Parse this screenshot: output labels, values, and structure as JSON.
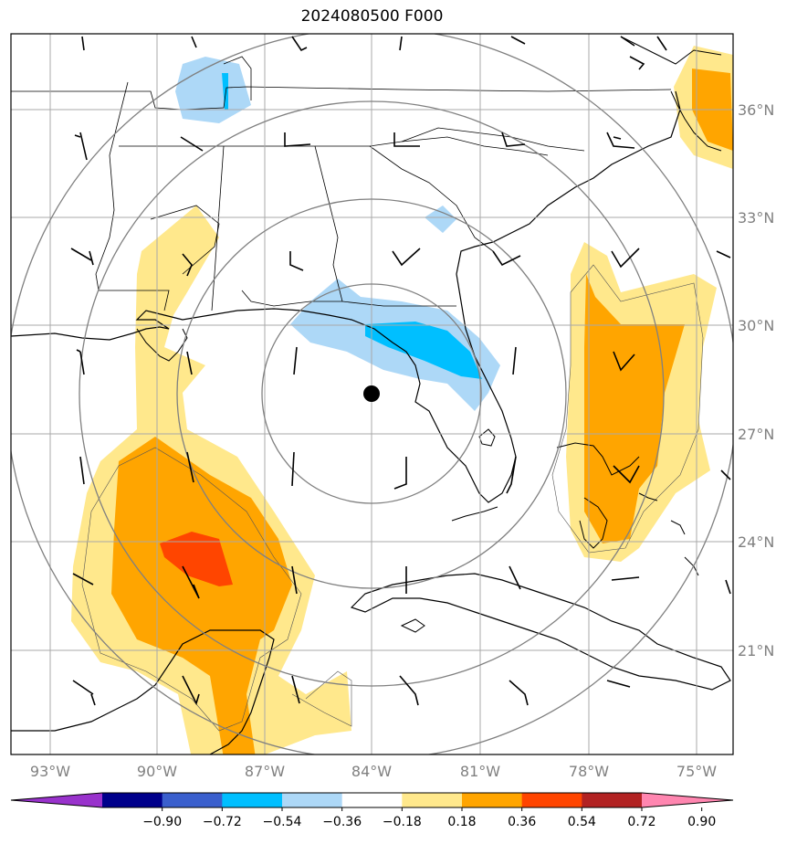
{
  "title": "2024080500 F000",
  "map": {
    "lat_labels": [
      "36°N",
      "33°N",
      "30°N",
      "27°N",
      "24°N",
      "21°N"
    ],
    "lon_labels": [
      "93°W",
      "90°W",
      "87°W",
      "84°W",
      "81°W",
      "78°W",
      "75°W"
    ],
    "center": "84°W, 28°N"
  },
  "colorbar": {
    "ticks": [
      "−0.90",
      "−0.72",
      "−0.54",
      "−0.36",
      "−0.18",
      "0.18",
      "0.36",
      "0.54",
      "0.72",
      "0.90"
    ],
    "colors": [
      "#9932cc",
      "#00008b",
      "#3a5fcd",
      "#00bfff",
      "#add8f7",
      "#ffffff",
      "#ffe88c",
      "#ffa500",
      "#ff4500",
      "#b22222",
      "#ff86b0"
    ]
  }
}
